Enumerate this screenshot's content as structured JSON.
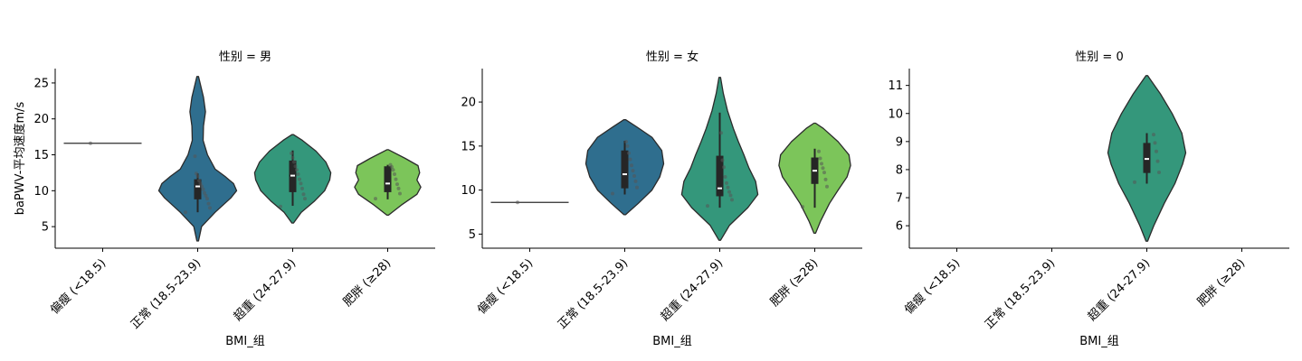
{
  "colors": {
    "偏瘦 (<18.5)": "#3b518b",
    "正常 (18.5-23.9)": "#2f6e8e",
    "超重 (24-27.9)": "#34977b",
    "肥胖 (≥28)": "#7cc55a"
  },
  "chart_data": [
    {
      "type": "violin",
      "title": "性别 = 男",
      "xlabel": "BMI_组",
      "ylabel": "baPWV-平均速度m/s",
      "categories": [
        "偏瘦 (<18.5)",
        "正常 (18.5-23.9)",
        "超重 (24-27.9)",
        "肥胖 (≥28)"
      ],
      "yticks": [
        5,
        10,
        15,
        20,
        25
      ],
      "ylim": [
        2,
        27
      ],
      "groups": [
        {
          "category": "偏瘦 (<18.5)",
          "single_value": 16.6,
          "points": [
            16.6
          ]
        },
        {
          "category": "正常 (18.5-23.9)",
          "min": 3.0,
          "max": 25.9,
          "density": [
            [
              3.0,
              0.02
            ],
            [
              5,
              0.1
            ],
            [
              7,
              0.45
            ],
            [
              9,
              0.85
            ],
            [
              10,
              1.0
            ],
            [
              11,
              0.92
            ],
            [
              12,
              0.7
            ],
            [
              13,
              0.45
            ],
            [
              15,
              0.25
            ],
            [
              17,
              0.14
            ],
            [
              19,
              0.15
            ],
            [
              21,
              0.2
            ],
            [
              23,
              0.15
            ],
            [
              25,
              0.06
            ],
            [
              25.9,
              0.02
            ]
          ],
          "q1": 8.8,
          "median": 10.6,
          "q3": 11.6,
          "whisker_low": 7.0,
          "whisker_high": 12.4,
          "points": [
            7.0,
            7.6,
            8.2,
            8.9,
            9.3,
            9.7,
            10.2,
            10.6,
            11.0,
            11.4,
            12.0,
            12.4,
            14.8
          ]
        },
        {
          "category": "超重 (24-27.9)",
          "min": 5.5,
          "max": 17.8,
          "density": [
            [
              5.5,
              0.02
            ],
            [
              7,
              0.22
            ],
            [
              8.5,
              0.55
            ],
            [
              10,
              0.82
            ],
            [
              11.5,
              0.95
            ],
            [
              12.5,
              0.98
            ],
            [
              14,
              0.85
            ],
            [
              15.5,
              0.6
            ],
            [
              17,
              0.25
            ],
            [
              17.8,
              0.02
            ]
          ],
          "q1": 9.8,
          "median": 12.1,
          "q3": 14.2,
          "whisker_low": 7.9,
          "whisker_high": 15.6,
          "points": [
            7.8,
            8.9,
            9.5,
            10.3,
            11.0,
            11.6,
            12.3,
            12.9,
            13.4,
            14.0,
            14.6,
            15.2
          ]
        },
        {
          "category": "肥胖 (≥28)",
          "min": 6.6,
          "max": 15.7,
          "density": [
            [
              6.6,
              0.02
            ],
            [
              8,
              0.35
            ],
            [
              9.5,
              0.75
            ],
            [
              10.5,
              0.85
            ],
            [
              11.5,
              0.75
            ],
            [
              12.5,
              0.82
            ],
            [
              13.5,
              0.78
            ],
            [
              14.5,
              0.45
            ],
            [
              15.7,
              0.02
            ]
          ],
          "q1": 9.8,
          "median": 11.0,
          "q3": 13.4,
          "whisker_low": 8.8,
          "whisker_high": 13.6,
          "points": [
            8.9,
            9.6,
            10.3,
            10.9,
            11.6,
            12.3,
            12.9,
            13.3,
            13.6
          ]
        }
      ]
    },
    {
      "type": "violin",
      "title": "性别 = 女",
      "xlabel": "BMI_组",
      "ylabel": "",
      "categories": [
        "偏瘦 (<18.5)",
        "正常 (18.5-23.9)",
        "超重 (24-27.9)",
        "肥胖 (≥28)"
      ],
      "yticks": [
        5,
        10,
        15,
        20
      ],
      "ylim": [
        3.4,
        23.8
      ],
      "groups": [
        {
          "category": "偏瘦 (<18.5)",
          "single_value": 8.6,
          "points": [
            8.6
          ]
        },
        {
          "category": "正常 (18.5-23.9)",
          "min": 7.2,
          "max": 18.0,
          "density": [
            [
              7.2,
              0.02
            ],
            [
              8.5,
              0.35
            ],
            [
              10,
              0.7
            ],
            [
              11.5,
              0.9
            ],
            [
              13,
              1.0
            ],
            [
              14.5,
              0.95
            ],
            [
              16,
              0.7
            ],
            [
              17.2,
              0.3
            ],
            [
              18.0,
              0.02
            ]
          ],
          "q1": 10.2,
          "median": 11.8,
          "q3": 14.5,
          "whisker_low": 9.5,
          "whisker_high": 15.6,
          "points": [
            9.6,
            10.3,
            11.0,
            11.6,
            12.2,
            12.8,
            13.5,
            14.2,
            15.0,
            15.5
          ]
        },
        {
          "category": "超重 (24-27.9)",
          "min": 4.3,
          "max": 22.8,
          "density": [
            [
              4.3,
              0.02
            ],
            [
              6,
              0.25
            ],
            [
              8,
              0.72
            ],
            [
              9.5,
              0.98
            ],
            [
              11,
              0.92
            ],
            [
              12.5,
              0.75
            ],
            [
              14,
              0.62
            ],
            [
              15.5,
              0.48
            ],
            [
              17,
              0.35
            ],
            [
              19,
              0.2
            ],
            [
              21,
              0.09
            ],
            [
              22.8,
              0.02
            ]
          ],
          "q1": 9.3,
          "median": 10.2,
          "q3": 13.9,
          "whisker_low": 8.0,
          "whisker_high": 18.8,
          "points": [
            8.2,
            8.9,
            9.4,
            9.8,
            10.3,
            10.8,
            11.5,
            12.6,
            13.4,
            16.5
          ]
        },
        {
          "category": "肥胖 (≥28)",
          "min": 5.1,
          "max": 17.6,
          "density": [
            [
              5.1,
              0.02
            ],
            [
              6.5,
              0.15
            ],
            [
              8.5,
              0.38
            ],
            [
              10,
              0.6
            ],
            [
              11.5,
              0.83
            ],
            [
              12.8,
              0.92
            ],
            [
              14,
              0.88
            ],
            [
              15.5,
              0.6
            ],
            [
              17,
              0.22
            ],
            [
              17.6,
              0.02
            ]
          ],
          "q1": 10.7,
          "median": 12.2,
          "q3": 13.7,
          "whisker_low": 8.0,
          "whisker_high": 14.7,
          "points": [
            8.1,
            10.4,
            11.2,
            12.0,
            12.5,
            13.0,
            13.6,
            14.4
          ]
        }
      ]
    },
    {
      "type": "violin",
      "title": "性别 = 0",
      "xlabel": "BMI_组",
      "ylabel": "",
      "categories": [
        "偏瘦 (<18.5)",
        "正常 (18.5-23.9)",
        "超重 (24-27.9)",
        "肥胖 (≥28)"
      ],
      "yticks": [
        6,
        7,
        8,
        9,
        10,
        11
      ],
      "ylim": [
        5.2,
        11.6
      ],
      "groups": [
        {
          "category": "超重 (24-27.9)",
          "min": 5.45,
          "max": 11.35,
          "density": [
            [
              5.45,
              0.02
            ],
            [
              6,
              0.18
            ],
            [
              6.8,
              0.45
            ],
            [
              7.5,
              0.72
            ],
            [
              8.2,
              0.92
            ],
            [
              8.6,
              1.0
            ],
            [
              9.3,
              0.9
            ],
            [
              10.0,
              0.65
            ],
            [
              10.7,
              0.35
            ],
            [
              11.35,
              0.02
            ]
          ],
          "q1": 7.88,
          "median": 8.38,
          "q3": 8.95,
          "whisker_low": 7.5,
          "whisker_high": 9.3,
          "points": [
            7.55,
            7.9,
            8.3,
            8.65,
            8.95,
            9.25
          ]
        }
      ]
    }
  ]
}
